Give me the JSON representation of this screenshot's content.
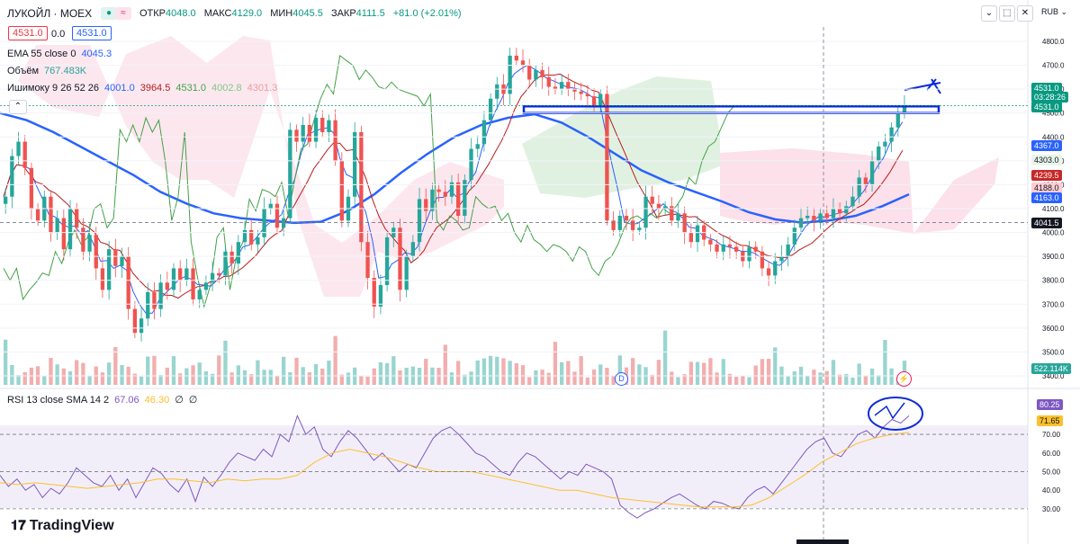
{
  "header": {
    "symbol": "ЛУКОЙЛ · MOEX",
    "open_label": "ОТКР",
    "open": "4048.0",
    "high_label": "МАКС",
    "high": "4129.0",
    "low_label": "МИН",
    "low": "4045.5",
    "close_label": "ЗАКР",
    "close": "4111.5",
    "change": "+81.0 (+2.01%)",
    "sell_price": "4531.0",
    "spread": "0.0",
    "buy_price": "4531.0",
    "currency": "RUB"
  },
  "indicators": {
    "ema_label": "EMA 55 close 0",
    "ema_value": "4045.3",
    "volume_label": "Объём",
    "volume_value": "767.483K",
    "ichimoku_label": "Ишимоку 9 26 52 26",
    "ichimoku_values": [
      "4001.0",
      "3964.5",
      "4531.0",
      "4002.8",
      "4301.3"
    ],
    "rsi_label": "RSI 13 close SMA 14 2",
    "rsi_values": [
      "67.06",
      "46.30",
      "∅",
      "∅"
    ]
  },
  "price_axis": {
    "ticks": [
      "4800.0",
      "4700.0",
      "4600.0",
      "4500.0",
      "4400.0",
      "4300.0",
      "4200.0",
      "4100.0",
      "4000.0",
      "3900.0",
      "3800.0",
      "3700.0",
      "3600.0",
      "3500.0",
      "3400.0"
    ],
    "tags": [
      {
        "text": "4531.0",
        "color": "#089981"
      },
      {
        "text": "03:28:26",
        "color": "#089981"
      },
      {
        "text": "4531.0",
        "color": "#089981"
      },
      {
        "text": "4367.0",
        "color": "#2962ff"
      },
      {
        "text": "4303.0",
        "color": "#e8f5e9"
      },
      {
        "text": "4239.5",
        "color": "#c62828"
      },
      {
        "text": "4188.0",
        "color": "#ffcdd2"
      },
      {
        "text": "4163.0",
        "color": "#2962ff"
      },
      {
        "text": "4041.5",
        "color": "#131722"
      },
      {
        "text": "522.114K",
        "color": "#26a69a"
      }
    ]
  },
  "rsi_axis": {
    "ticks": [
      "70.00",
      "60.00",
      "50.00",
      "40.00",
      "30.00"
    ],
    "tags": [
      {
        "text": "80.25",
        "color": "#7e57c2"
      },
      {
        "text": "71.65",
        "color": "#fbc02d"
      }
    ]
  },
  "markers": {
    "dividend": "D",
    "lightning": "⚡"
  },
  "branding": {
    "logo": "TradingView"
  },
  "chart_data": {
    "type": "candlestick",
    "title": "ЛУКОЙЛ · MOEX",
    "ylim": [
      3400,
      4850
    ],
    "rsi_ylim": [
      25,
      90
    ],
    "crosshair_price": 4041.5,
    "box": {
      "top": 4528,
      "bottom": 4500
    },
    "close_series": [
      4150,
      4320,
      4380,
      4270,
      4100,
      4050,
      4150,
      4000,
      4060,
      3930,
      4100,
      4020,
      3920,
      3990,
      3850,
      3760,
      3930,
      3860,
      3900,
      3680,
      3580,
      3640,
      3750,
      3680,
      3790,
      3760,
      3850,
      3800,
      3850,
      3720,
      3760,
      3790,
      3830,
      3820,
      3920,
      3870,
      3960,
      4010,
      3950,
      3980,
      4100,
      4120,
      4020,
      4060,
      4430,
      4380,
      4450,
      4380,
      4480,
      4420,
      4470,
      4300,
      4050,
      4150,
      4420,
      3960,
      3810,
      3690,
      3780,
      3980,
      4020,
      3760,
      3900,
      3960,
      4140,
      4090,
      4180,
      4170,
      4150,
      4210,
      4070,
      4220,
      4350,
      4370,
      4470,
      4560,
      4620,
      4580,
      4740,
      4720,
      4700,
      4640,
      4680,
      4650,
      4610,
      4600,
      4630,
      4600,
      4590,
      4580,
      4570,
      4530,
      4580,
      4050,
      4010,
      4070,
      4050,
      4010,
      4020,
      4150,
      4120,
      4100,
      4110,
      4050,
      4080,
      4000,
      3960,
      4030,
      3970,
      3950,
      3920,
      3950,
      3940,
      3920,
      3880,
      3940,
      3920,
      3850,
      3820,
      3880,
      3900,
      3950,
      4020,
      4060,
      4070,
      4050,
      4080,
      4060,
      4100,
      4080,
      4110,
      4150,
      4230,
      4200,
      4300,
      4360,
      4380,
      4440,
      4500,
      4531
    ],
    "ema55": [
      4500,
      4470,
      4420,
      4360,
      4300,
      4240,
      4170,
      4120,
      4080,
      4060,
      4050,
      4040,
      4045,
      4090,
      4160,
      4250,
      4330,
      4400,
      4450,
      4480,
      4495,
      4460,
      4400,
      4330,
      4260,
      4210,
      4170,
      4130,
      4085,
      4055,
      4041,
      4050,
      4070,
      4110,
      4160
    ],
    "rsi": [
      48,
      42,
      46,
      40,
      43,
      36,
      41,
      38,
      44,
      52,
      48,
      44,
      42,
      48,
      40,
      46,
      36,
      44,
      52,
      49,
      43,
      39,
      46,
      34,
      47,
      42,
      48,
      55,
      60,
      58,
      56,
      62,
      58,
      70,
      66,
      80,
      70,
      74,
      62,
      58,
      66,
      72,
      68,
      62,
      56,
      60,
      55,
      50,
      54,
      52,
      60,
      68,
      72,
      74,
      70,
      65,
      60,
      58,
      54,
      50,
      48,
      55,
      60,
      58,
      54,
      50,
      46,
      50,
      48,
      54,
      52,
      50,
      46,
      32,
      28,
      25,
      28,
      30,
      33,
      36,
      38,
      35,
      32,
      30,
      34,
      33,
      31,
      30,
      36,
      40,
      42,
      38,
      44,
      50,
      56,
      62,
      66,
      68,
      60,
      58,
      64,
      70,
      72,
      68,
      74,
      78,
      76,
      80
    ],
    "rsi_sma": [
      44,
      43,
      44,
      43,
      42,
      41,
      42,
      43,
      44,
      46,
      46,
      45,
      44,
      46,
      45,
      46,
      46,
      48,
      55,
      60,
      62,
      60,
      58,
      55,
      52,
      50,
      50,
      50,
      48,
      46,
      44,
      42,
      40,
      40,
      38,
      36,
      35,
      34,
      33,
      32,
      31,
      31,
      31,
      32,
      36,
      42,
      48,
      55,
      60,
      65,
      68,
      70,
      71
    ]
  }
}
